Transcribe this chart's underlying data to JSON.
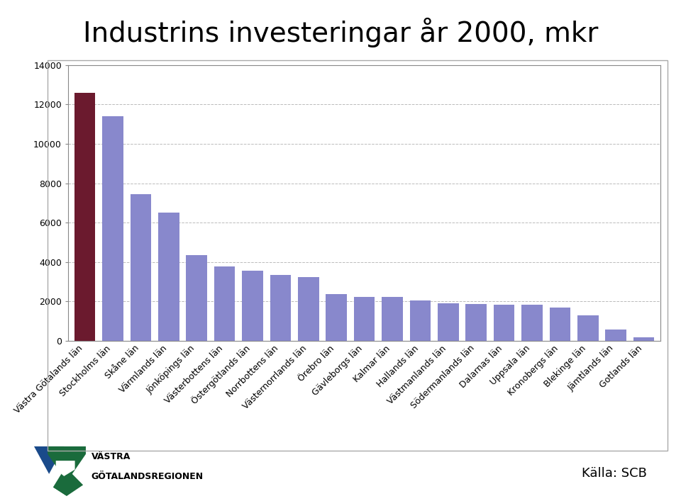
{
  "title": "Industrins investeringar år 2000, mkr",
  "categories": [
    "Västra Götalands län",
    "Stockholms län",
    "Skåne län",
    "Värmlands län",
    "Jönköpings län",
    "Västerbottens län",
    "Östergötlands län",
    "Norrbottens län",
    "Västernorrlands län",
    "Örebro län",
    "Gävleborgs län",
    "Kalmar län",
    "Hallands län",
    "Västmanlands län",
    "Södermanlands län",
    "Dalarnas län",
    "Uppsala län",
    "Kronobergs län",
    "Blekinge län",
    "Jämtlands län",
    "Gotlands län"
  ],
  "values": [
    12600,
    11400,
    7450,
    6500,
    4350,
    3780,
    3550,
    3340,
    3230,
    2380,
    2240,
    2230,
    2030,
    1900,
    1860,
    1820,
    1810,
    1680,
    1290,
    580,
    165
  ],
  "bar_color_first": "#6b1a2e",
  "bar_color_default": "#8888cc",
  "ylim": [
    0,
    14000
  ],
  "yticks": [
    0,
    2000,
    4000,
    6000,
    8000,
    10000,
    12000,
    14000
  ],
  "title_fontsize": 28,
  "tick_fontsize": 9,
  "source_text": "Källa: SCB",
  "background_color": "#ffffff",
  "grid_color": "#bbbbbb",
  "logo_text_line1": "VÄSTRA",
  "logo_text_line2": "GÖTALANDSREGIONEN"
}
